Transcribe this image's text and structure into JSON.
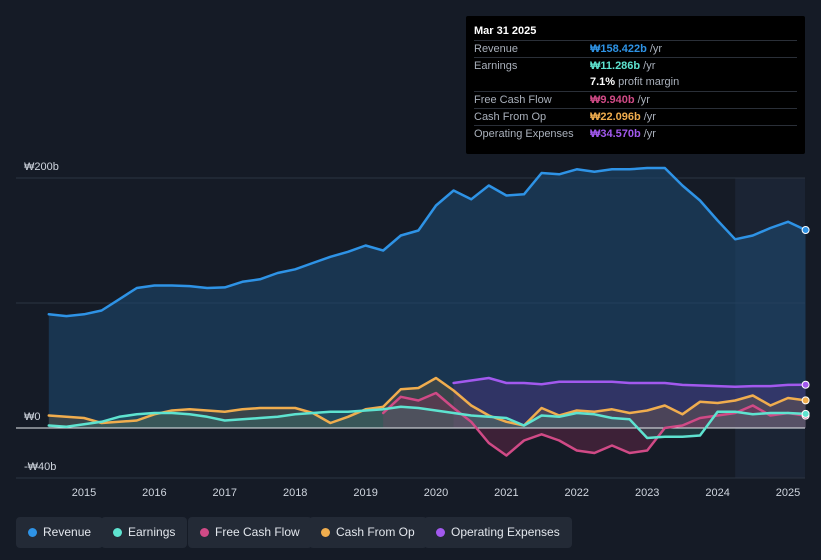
{
  "tooltip": {
    "date": "Mar 31 2025",
    "rows": [
      {
        "label": "Revenue",
        "value": "₩158.422b",
        "unit": "/yr",
        "color": "#2e93e6"
      },
      {
        "label": "Earnings",
        "value": "₩11.286b",
        "unit": "/yr",
        "color": "#5ee3d0"
      },
      {
        "label": "Free Cash Flow",
        "value": "₩9.940b",
        "unit": "/yr",
        "color": "#d04a86"
      },
      {
        "label": "Cash From Op",
        "value": "₩22.096b",
        "unit": "/yr",
        "color": "#f0ad4e"
      },
      {
        "label": "Operating Expenses",
        "value": "₩34.570b",
        "unit": "/yr",
        "color": "#a259ee"
      }
    ],
    "margin_value": "7.1%",
    "margin_label": "profit margin"
  },
  "chart_data": {
    "type": "line",
    "y_axis_labels": [
      "₩200b",
      "₩0",
      "-₩40b"
    ],
    "x_tick_labels": [
      "2015",
      "2016",
      "2017",
      "2018",
      "2019",
      "2020",
      "2021",
      "2022",
      "2023",
      "2024",
      "2025"
    ],
    "x_range": [
      2014.5,
      2025.25
    ],
    "y_range": [
      -40,
      200
    ],
    "forecast_start": 2024.25,
    "series": [
      {
        "name": "Revenue",
        "color": "#2e93e6",
        "points": [
          [
            2014.5,
            91
          ],
          [
            2014.75,
            89.5
          ],
          [
            2015.0,
            91
          ],
          [
            2015.25,
            94
          ],
          [
            2015.5,
            103
          ],
          [
            2015.75,
            112
          ],
          [
            2016.0,
            114
          ],
          [
            2016.25,
            114
          ],
          [
            2016.5,
            113.5
          ],
          [
            2016.75,
            112
          ],
          [
            2017.0,
            112.5
          ],
          [
            2017.25,
            117
          ],
          [
            2017.5,
            119
          ],
          [
            2017.75,
            124
          ],
          [
            2018.0,
            127
          ],
          [
            2018.25,
            132
          ],
          [
            2018.5,
            137
          ],
          [
            2018.75,
            141
          ],
          [
            2019.0,
            146
          ],
          [
            2019.25,
            142
          ],
          [
            2019.5,
            154
          ],
          [
            2019.75,
            158
          ],
          [
            2020.0,
            178
          ],
          [
            2020.25,
            190
          ],
          [
            2020.5,
            183
          ],
          [
            2020.75,
            194
          ],
          [
            2021.0,
            186
          ],
          [
            2021.25,
            187
          ],
          [
            2021.5,
            204
          ],
          [
            2021.75,
            203
          ],
          [
            2022.0,
            207
          ],
          [
            2022.25,
            205
          ],
          [
            2022.5,
            207
          ],
          [
            2022.75,
            207
          ],
          [
            2023.0,
            208
          ],
          [
            2023.25,
            208
          ],
          [
            2023.5,
            194
          ],
          [
            2023.75,
            182
          ],
          [
            2024.0,
            166
          ],
          [
            2024.25,
            151
          ],
          [
            2024.5,
            154
          ],
          [
            2024.75,
            160
          ],
          [
            2025.0,
            165
          ],
          [
            2025.25,
            158.4
          ]
        ]
      },
      {
        "name": "Earnings",
        "color": "#5ee3d0",
        "points": [
          [
            2014.5,
            2
          ],
          [
            2014.75,
            1
          ],
          [
            2015.0,
            3
          ],
          [
            2015.25,
            5
          ],
          [
            2015.5,
            9
          ],
          [
            2015.75,
            11
          ],
          [
            2016.0,
            12
          ],
          [
            2016.25,
            12
          ],
          [
            2016.5,
            11
          ],
          [
            2016.75,
            9
          ],
          [
            2017.0,
            6
          ],
          [
            2017.25,
            7
          ],
          [
            2017.5,
            8
          ],
          [
            2017.75,
            9
          ],
          [
            2018.0,
            11
          ],
          [
            2018.25,
            12
          ],
          [
            2018.5,
            13
          ],
          [
            2018.75,
            13
          ],
          [
            2019.0,
            14
          ],
          [
            2019.25,
            15
          ],
          [
            2019.5,
            17
          ],
          [
            2019.75,
            16
          ],
          [
            2020.0,
            14
          ],
          [
            2020.25,
            12
          ],
          [
            2020.5,
            10
          ],
          [
            2020.75,
            9
          ],
          [
            2021.0,
            8
          ],
          [
            2021.25,
            2
          ],
          [
            2021.5,
            10
          ],
          [
            2021.75,
            9
          ],
          [
            2022.0,
            12
          ],
          [
            2022.25,
            11
          ],
          [
            2022.5,
            8
          ],
          [
            2022.75,
            7
          ],
          [
            2023.0,
            -8
          ],
          [
            2023.25,
            -7
          ],
          [
            2023.5,
            -7
          ],
          [
            2023.75,
            -6
          ],
          [
            2024.0,
            13
          ],
          [
            2024.25,
            13
          ],
          [
            2024.5,
            11
          ],
          [
            2024.75,
            12
          ],
          [
            2025.0,
            12
          ],
          [
            2025.25,
            11.3
          ]
        ]
      },
      {
        "name": "Free Cash Flow",
        "color": "#d04a86",
        "points": [
          [
            2019.25,
            12
          ],
          [
            2019.5,
            25
          ],
          [
            2019.75,
            22
          ],
          [
            2020.0,
            28
          ],
          [
            2020.25,
            16
          ],
          [
            2020.5,
            5
          ],
          [
            2020.75,
            -12
          ],
          [
            2021.0,
            -22
          ],
          [
            2021.25,
            -10
          ],
          [
            2021.5,
            -5
          ],
          [
            2021.75,
            -10
          ],
          [
            2022.0,
            -18
          ],
          [
            2022.25,
            -20
          ],
          [
            2022.5,
            -14
          ],
          [
            2022.75,
            -20
          ],
          [
            2023.0,
            -18
          ],
          [
            2023.25,
            0
          ],
          [
            2023.5,
            2
          ],
          [
            2023.75,
            8
          ],
          [
            2024.0,
            10
          ],
          [
            2024.25,
            12
          ],
          [
            2024.5,
            18
          ],
          [
            2024.75,
            10
          ],
          [
            2025.0,
            12
          ],
          [
            2025.25,
            9.9
          ]
        ]
      },
      {
        "name": "Cash From Op",
        "color": "#f0ad4e",
        "points": [
          [
            2014.5,
            10
          ],
          [
            2014.75,
            9
          ],
          [
            2015.0,
            8
          ],
          [
            2015.25,
            4
          ],
          [
            2015.5,
            5
          ],
          [
            2015.75,
            6
          ],
          [
            2016.0,
            11
          ],
          [
            2016.25,
            14
          ],
          [
            2016.5,
            15
          ],
          [
            2016.75,
            14
          ],
          [
            2017.0,
            13
          ],
          [
            2017.25,
            15
          ],
          [
            2017.5,
            16
          ],
          [
            2017.75,
            16
          ],
          [
            2018.0,
            16
          ],
          [
            2018.25,
            12
          ],
          [
            2018.5,
            4
          ],
          [
            2018.75,
            9
          ],
          [
            2019.0,
            15
          ],
          [
            2019.25,
            17
          ],
          [
            2019.5,
            31
          ],
          [
            2019.75,
            32
          ],
          [
            2020.0,
            40
          ],
          [
            2020.25,
            30
          ],
          [
            2020.5,
            18
          ],
          [
            2020.75,
            10
          ],
          [
            2021.0,
            5
          ],
          [
            2021.25,
            2
          ],
          [
            2021.5,
            16
          ],
          [
            2021.75,
            10
          ],
          [
            2022.0,
            14
          ],
          [
            2022.25,
            13
          ],
          [
            2022.5,
            15
          ],
          [
            2022.75,
            12
          ],
          [
            2023.0,
            14
          ],
          [
            2023.25,
            18
          ],
          [
            2023.5,
            11
          ],
          [
            2023.75,
            21
          ],
          [
            2024.0,
            20
          ],
          [
            2024.25,
            22
          ],
          [
            2024.5,
            26
          ],
          [
            2024.75,
            18
          ],
          [
            2025.0,
            24
          ],
          [
            2025.25,
            22.1
          ]
        ]
      },
      {
        "name": "Operating Expenses",
        "color": "#a259ee",
        "points": [
          [
            2020.25,
            36
          ],
          [
            2020.5,
            38
          ],
          [
            2020.75,
            40
          ],
          [
            2021.0,
            36
          ],
          [
            2021.25,
            36
          ],
          [
            2021.5,
            35
          ],
          [
            2021.75,
            37
          ],
          [
            2022.0,
            37
          ],
          [
            2022.25,
            37
          ],
          [
            2022.5,
            37
          ],
          [
            2022.75,
            36
          ],
          [
            2023.0,
            36
          ],
          [
            2023.25,
            36
          ],
          [
            2023.5,
            34.5
          ],
          [
            2023.75,
            34
          ],
          [
            2024.0,
            33.5
          ],
          [
            2024.25,
            33
          ],
          [
            2024.5,
            33.5
          ],
          [
            2024.75,
            33.5
          ],
          [
            2025.0,
            34.5
          ],
          [
            2025.25,
            34.6
          ]
        ]
      }
    ]
  },
  "legend": [
    {
      "label": "Revenue",
      "color": "#2e93e6"
    },
    {
      "label": "Earnings",
      "color": "#5ee3d0"
    },
    {
      "label": "Free Cash Flow",
      "color": "#d04a86"
    },
    {
      "label": "Cash From Op",
      "color": "#f0ad4e"
    },
    {
      "label": "Operating Expenses",
      "color": "#a259ee"
    }
  ]
}
